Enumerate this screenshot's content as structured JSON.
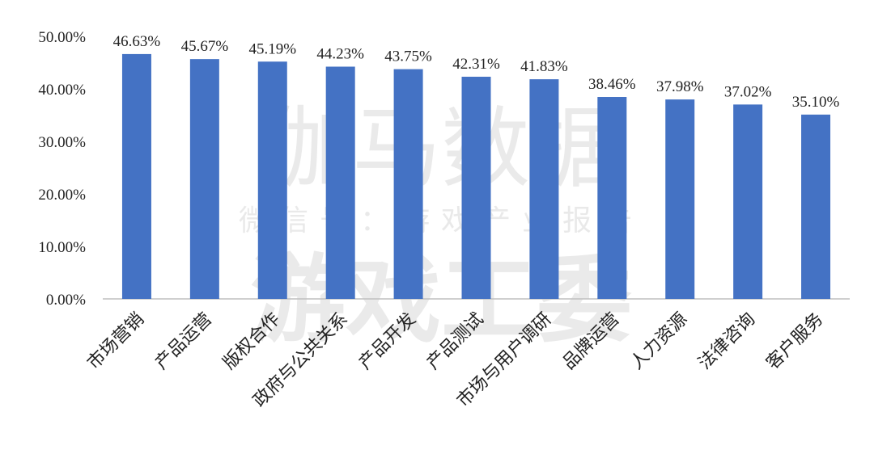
{
  "watermark": {
    "line1": "伽马数据",
    "line2": "微信号：游戏产业报告",
    "line3": "游戏工委"
  },
  "colors": {
    "bar": "#4472C4",
    "axis": "#bfbfbf"
  },
  "chart_data": {
    "type": "bar",
    "title": "",
    "xlabel": "",
    "ylabel": "",
    "ylim": [
      0,
      50
    ],
    "yticks": [
      "0.00%",
      "10.00%",
      "20.00%",
      "30.00%",
      "40.00%",
      "50.00%"
    ],
    "grid": false,
    "categories": [
      "市场营销",
      "产品运营",
      "版权合作",
      "政府与公共关系",
      "产品开发",
      "产品测试",
      "市场与用户调研",
      "品牌运营",
      "人力资源",
      "法律咨询",
      "客户服务"
    ],
    "values": [
      46.63,
      45.67,
      45.19,
      44.23,
      43.75,
      42.31,
      41.83,
      38.46,
      37.98,
      37.02,
      35.1
    ],
    "data_labels": [
      "46.63%",
      "45.67%",
      "45.19%",
      "44.23%",
      "43.75%",
      "42.31%",
      "41.83%",
      "38.46%",
      "37.98%",
      "37.02%",
      "35.10%"
    ]
  }
}
